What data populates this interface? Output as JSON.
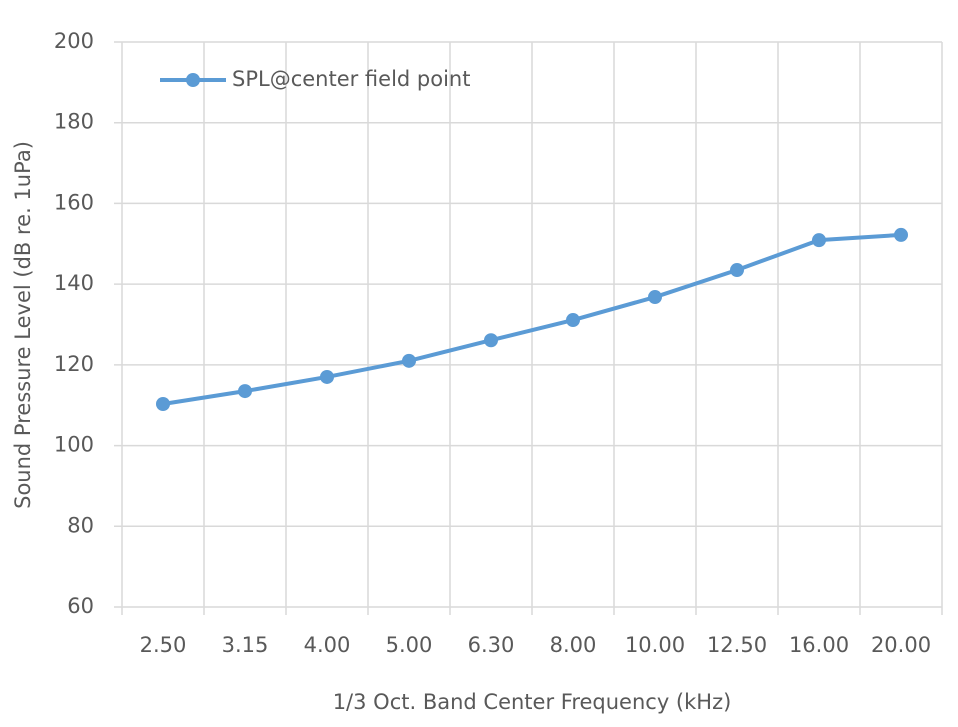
{
  "chart_data": {
    "type": "line",
    "x_label": "1/3 Oct. Band Center Frequency (kHz)",
    "y_label": "Sound Pressure Level (dB re. 1uPa)",
    "categories": [
      "2.50",
      "3.15",
      "4.00",
      "5.00",
      "6.30",
      "8.00",
      "10.00",
      "12.50",
      "16.00",
      "20.00"
    ],
    "series": [
      {
        "name": "SPL@center field point",
        "color": "#5b9bd5",
        "values": [
          110.3,
          113.5,
          117,
          121,
          126.1,
          131.1,
          136.8,
          143.5,
          150.9,
          152.2
        ]
      }
    ],
    "ylim": [
      60,
      200
    ],
    "yticks": [
      60,
      80,
      100,
      120,
      140,
      160,
      180,
      200
    ],
    "grid": true,
    "legend": "upper left"
  }
}
